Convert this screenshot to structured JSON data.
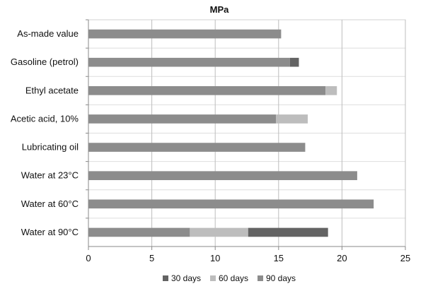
{
  "chart_data": {
    "type": "bar",
    "orientation": "horizontal",
    "stacked": true,
    "title": "MPa",
    "categories": [
      "As-made value",
      "Gasoline (petrol)",
      "Ethyl acetate",
      "Acetic acid, 10%",
      "Lubricating oil",
      "Water at 23°C",
      "Water at 60°C",
      "Water at 90°C"
    ],
    "series": [
      {
        "name": "90 days",
        "color": "#8c8c8c",
        "values": [
          15.2,
          15.9,
          18.7,
          14.8,
          17.1,
          21.2,
          22.5,
          8.0
        ]
      },
      {
        "name": "60 days",
        "color": "#bdbdbd",
        "values": [
          0,
          0,
          0.9,
          2.5,
          0,
          0,
          0,
          4.6
        ]
      },
      {
        "name": "30 days",
        "color": "#636363",
        "values": [
          0,
          0.7,
          0,
          0,
          0,
          0,
          0,
          6.3
        ]
      }
    ],
    "legend_order": [
      "30 days",
      "60 days",
      "90 days"
    ],
    "xlim": [
      0,
      25
    ],
    "x_ticks": [
      0,
      5,
      10,
      15,
      20,
      25
    ],
    "legend_position": "bottom",
    "grid": true
  }
}
